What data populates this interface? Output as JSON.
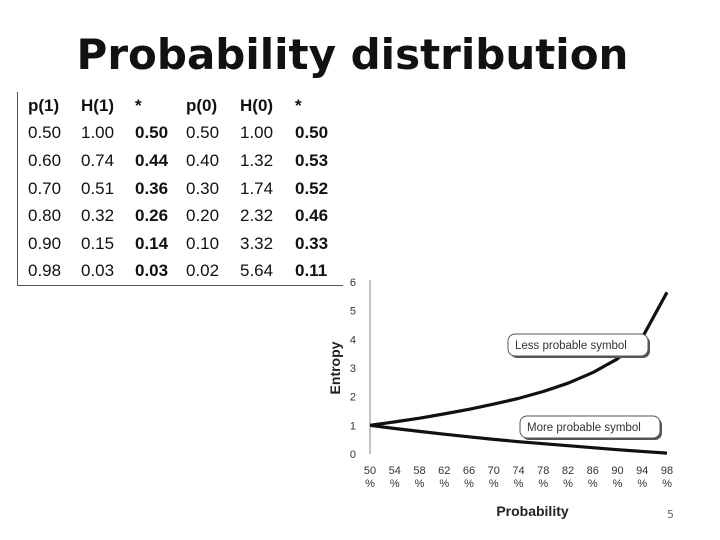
{
  "slide": {
    "title": "Probability distribution",
    "page_number": "5"
  },
  "table": {
    "headers": [
      "p(1)",
      "H(1)",
      "*",
      "p(0)",
      "H(0)",
      "*"
    ],
    "rows": [
      [
        "0.50",
        "1.00",
        "0.50",
        "0.50",
        "1.00",
        "0.50"
      ],
      [
        "0.60",
        "0.74",
        "0.44",
        "0.40",
        "1.32",
        "0.53"
      ],
      [
        "0.70",
        "0.51",
        "0.36",
        "0.30",
        "1.74",
        "0.52"
      ],
      [
        "0.80",
        "0.32",
        "0.26",
        "0.20",
        "2.32",
        "0.46"
      ],
      [
        "0.90",
        "0.15",
        "0.14",
        "0.10",
        "3.32",
        "0.33"
      ],
      [
        "0.98",
        "0.03",
        "0.03",
        "0.02",
        "5.64",
        "0.11"
      ]
    ]
  },
  "chart_data": {
    "type": "line",
    "xlabel": "Probability",
    "ylabel": "Entropy",
    "ylim": [
      0,
      6
    ],
    "y_ticks": [
      "0",
      "1",
      "2",
      "3",
      "4",
      "5",
      "6"
    ],
    "x_ticks": [
      "50 %",
      "54 %",
      "58 %",
      "62 %",
      "66 %",
      "70 %",
      "74 %",
      "78 %",
      "82 %",
      "86 %",
      "90 %",
      "94 %",
      "98 %"
    ],
    "x_values": [
      50,
      54,
      58,
      62,
      66,
      70,
      74,
      78,
      82,
      86,
      90,
      94,
      98
    ],
    "series": [
      {
        "name": "Less probable symbol",
        "values": [
          1.0,
          1.12,
          1.25,
          1.4,
          1.56,
          1.74,
          1.94,
          2.18,
          2.47,
          2.84,
          3.32,
          4.06,
          5.64
        ]
      },
      {
        "name": "More probable symbol",
        "values": [
          1.0,
          0.89,
          0.79,
          0.69,
          0.6,
          0.51,
          0.43,
          0.36,
          0.29,
          0.22,
          0.15,
          0.09,
          0.03
        ]
      }
    ],
    "annotations": [
      "Less probable symbol",
      "More probable symbol"
    ],
    "grid": false
  }
}
